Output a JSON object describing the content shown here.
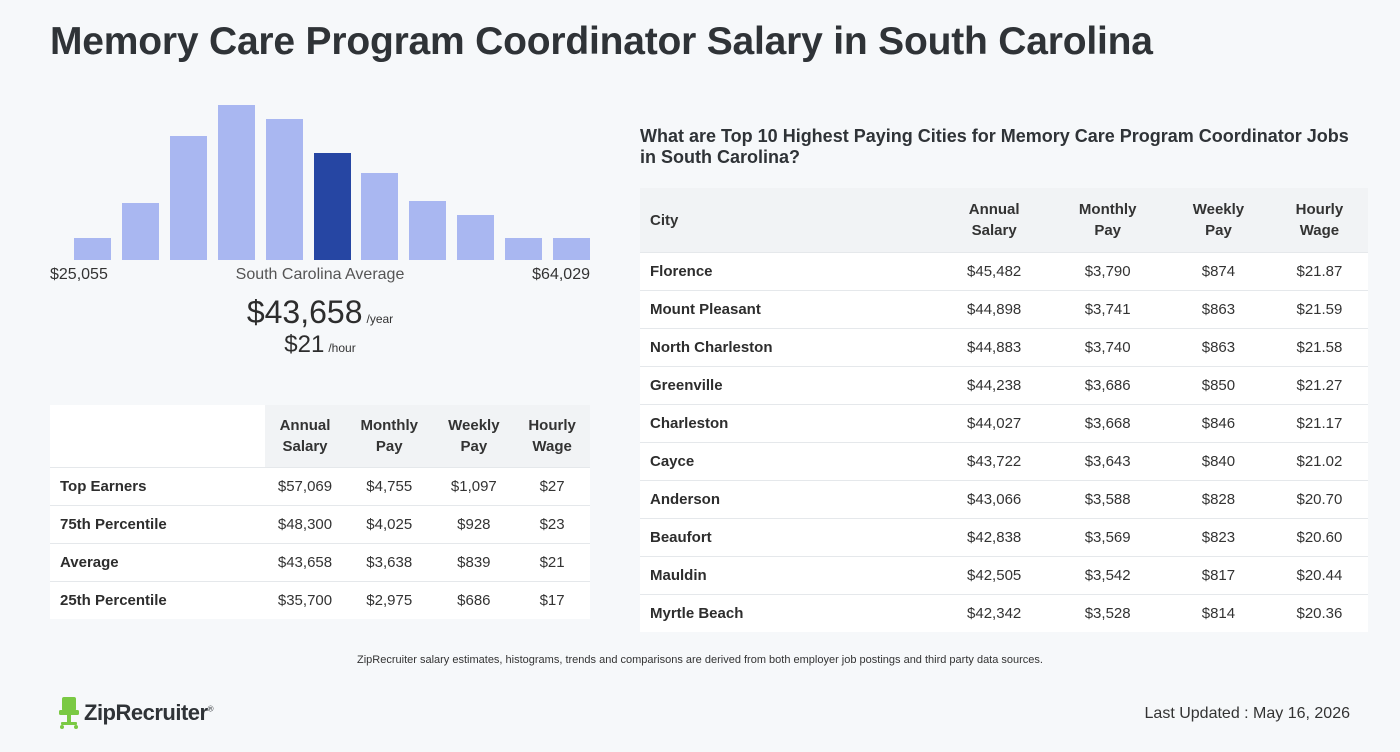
{
  "page": {
    "title": "Memory Care Program Coordinator Salary in South Carolina"
  },
  "histogram": {
    "bars": [
      0.14,
      0.37,
      0.8,
      1.0,
      0.91,
      0.69,
      0.56,
      0.38,
      0.29,
      0.14,
      0.14
    ],
    "highlight_index": 5,
    "min_label": "$25,055",
    "max_label": "$64,029",
    "center_label": "South Carolina Average",
    "colors": {
      "bar": "#a9b7f1",
      "highlight": "#2646a3"
    }
  },
  "average": {
    "yearly": "$43,658",
    "yearly_unit": "/year",
    "hourly": "$21",
    "hourly_unit": "/hour"
  },
  "percentile_table": {
    "headers": [
      "",
      "Annual\nSalary",
      "Monthly\nPay",
      "Weekly\nPay",
      "Hourly\nWage"
    ],
    "h1a": "Annual",
    "h1b": "Salary",
    "h2a": "Monthly",
    "h2b": "Pay",
    "h3a": "Weekly",
    "h3b": "Pay",
    "h4a": "Hourly",
    "h4b": "Wage",
    "rows": [
      {
        "label": "Top Earners",
        "annual": "$57,069",
        "monthly": "$4,755",
        "weekly": "$1,097",
        "hourly": "$27"
      },
      {
        "label": "75th Percentile",
        "annual": "$48,300",
        "monthly": "$4,025",
        "weekly": "$928",
        "hourly": "$23"
      },
      {
        "label": "Average",
        "annual": "$43,658",
        "monthly": "$3,638",
        "weekly": "$839",
        "hourly": "$21"
      },
      {
        "label": "25th Percentile",
        "annual": "$35,700",
        "monthly": "$2,975",
        "weekly": "$686",
        "hourly": "$17"
      }
    ]
  },
  "cities_table": {
    "title": "What are Top 10 Highest Paying Cities for Memory Care Program Coordinator Jobs in South Carolina?",
    "h_city": "City",
    "h1a": "Annual",
    "h1b": "Salary",
    "h2a": "Monthly",
    "h2b": "Pay",
    "h3a": "Weekly",
    "h3b": "Pay",
    "h4a": "Hourly",
    "h4b": "Wage",
    "rows": [
      {
        "city": "Florence",
        "annual": "$45,482",
        "monthly": "$3,790",
        "weekly": "$874",
        "hourly": "$21.87"
      },
      {
        "city": "Mount Pleasant",
        "annual": "$44,898",
        "monthly": "$3,741",
        "weekly": "$863",
        "hourly": "$21.59"
      },
      {
        "city": "North Charleston",
        "annual": "$44,883",
        "monthly": "$3,740",
        "weekly": "$863",
        "hourly": "$21.58"
      },
      {
        "city": "Greenville",
        "annual": "$44,238",
        "monthly": "$3,686",
        "weekly": "$850",
        "hourly": "$21.27"
      },
      {
        "city": "Charleston",
        "annual": "$44,027",
        "monthly": "$3,668",
        "weekly": "$846",
        "hourly": "$21.17"
      },
      {
        "city": "Cayce",
        "annual": "$43,722",
        "monthly": "$3,643",
        "weekly": "$840",
        "hourly": "$21.02"
      },
      {
        "city": "Anderson",
        "annual": "$43,066",
        "monthly": "$3,588",
        "weekly": "$828",
        "hourly": "$20.70"
      },
      {
        "city": "Beaufort",
        "annual": "$42,838",
        "monthly": "$3,569",
        "weekly": "$823",
        "hourly": "$20.60"
      },
      {
        "city": "Mauldin",
        "annual": "$42,505",
        "monthly": "$3,542",
        "weekly": "$817",
        "hourly": "$20.44"
      },
      {
        "city": "Myrtle Beach",
        "annual": "$42,342",
        "monthly": "$3,528",
        "weekly": "$814",
        "hourly": "$20.36"
      }
    ]
  },
  "footer": {
    "note": "ZipRecruiter salary estimates, histograms, trends and comparisons are derived from both employer job postings and third party data sources.",
    "logo_text": "ZipRecruiter",
    "logo_mark": "®",
    "last_updated": "Last Updated : May 16, 2026",
    "logo_color": "#7ac943"
  }
}
